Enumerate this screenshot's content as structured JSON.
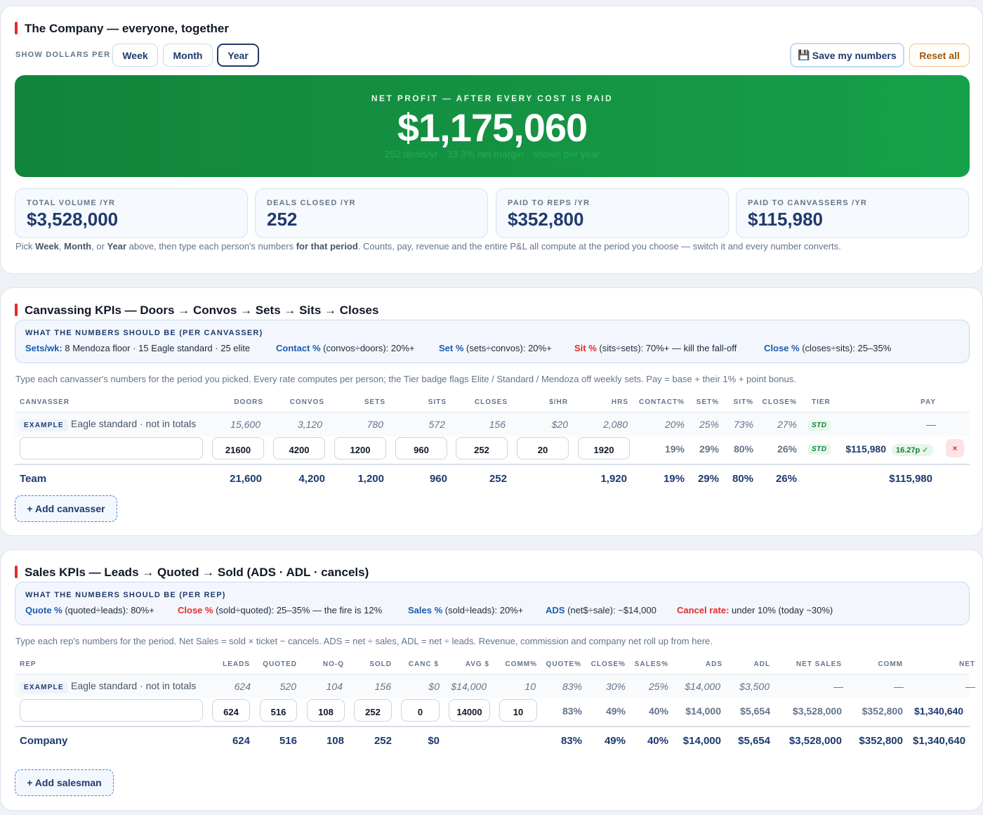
{
  "company": {
    "title": "The Company — everyone, together",
    "period_label": "SHOW DOLLARS PER",
    "periods": [
      "Week",
      "Month",
      "Year"
    ],
    "active_period": "Year",
    "save_label": "Save my numbers",
    "save_icon": "💾",
    "reset_label": "Reset all",
    "hero": {
      "label": "NET PROFIT — AFTER EVERY COST IS PAID",
      "value": "$1,175,060",
      "sub": "252 deals/yr · 33.3% net margin · shown per year"
    },
    "stats": [
      {
        "label": "TOTAL VOLUME /YR",
        "value": "$3,528,000"
      },
      {
        "label": "DEALS CLOSED /YR",
        "value": "252"
      },
      {
        "label": "PAID TO REPS /YR",
        "value": "$352,800"
      },
      {
        "label": "PAID TO CANVASSERS /YR",
        "value": "$115,980"
      }
    ],
    "note": {
      "p1": "Pick ",
      "week": "Week",
      "p2": ", ",
      "month": "Month",
      "p3": ", or ",
      "year": "Year",
      "p4": " above, then type each person's numbers ",
      "bold": "for that period",
      "p5": ". Counts, pay, revenue and the entire P&L all compute at the period you choose — switch it and every number converts."
    }
  },
  "canvassing": {
    "title": "Canvassing KPIs — Doors → Convos → Sets → Sits → Closes",
    "targets_title": "WHAT THE NUMBERS SHOULD BE (PER CANVASSER)",
    "targets": [
      {
        "key": "Sets/wk:",
        "text": " 8 Mendoza floor · 15 Eagle standard · 25 elite"
      },
      {
        "key": "Contact %",
        "text": " (convos÷doors): 20%+"
      },
      {
        "key": "Set %",
        "text": " (sets÷convos): 20%+"
      },
      {
        "key": "Sit %",
        "text": " (sits÷sets): 70%+ — kill the fall-off"
      },
      {
        "key": "Close %",
        "text": " (closes÷sits): 25–35%"
      }
    ],
    "note": "Type each canvasser's numbers for the period you picked. Every rate computes per person; the Tier badge flags Elite / Standard / Mendoza off weekly sets. Pay = base + their 1% + point bonus.",
    "headers": [
      "CANVASSER",
      "DOORS",
      "CONVOS",
      "SETS",
      "SITS",
      "CLOSES",
      "$/HR",
      "HRS",
      "CONTACT%",
      "SET%",
      "SIT%",
      "CLOSE%",
      "TIER",
      "PAY"
    ],
    "example": {
      "badge": "EXAMPLE",
      "label": "Eagle standard · not in totals",
      "values": [
        "15,600",
        "3,120",
        "780",
        "572",
        "156",
        "$20",
        "2,080",
        "20%",
        "25%",
        "73%",
        "27%"
      ],
      "tier": "STD",
      "pay": "—"
    },
    "row": {
      "name": "",
      "inputs": [
        "21600",
        "4200",
        "1200",
        "960",
        "252",
        "20",
        "1920"
      ],
      "rates": [
        "19%",
        "29%",
        "80%",
        "26%"
      ],
      "tier": "STD",
      "pay": "$115,980",
      "points": "16.27p ✓",
      "delete": "×"
    },
    "totals": {
      "label": "Team",
      "values": [
        "21,600",
        "4,200",
        "1,200",
        "960",
        "252"
      ],
      "hrs": "1,920",
      "rates": [
        "19%",
        "29%",
        "80%",
        "26%"
      ],
      "pay": "$115,980"
    },
    "add_label": "+ Add canvasser"
  },
  "sales": {
    "title": "Sales KPIs — Leads → Quoted → Sold (ADS · ADL · cancels)",
    "targets_title": "WHAT THE NUMBERS SHOULD BE (PER REP)",
    "targets": [
      {
        "key": "Quote %",
        "text": " (quoted÷leads): 80%+"
      },
      {
        "key": "Close %",
        "text": " (sold÷quoted): 25–35% — the fire is 12%"
      },
      {
        "key": "Sales %",
        "text": " (sold÷leads): 20%+"
      },
      {
        "key": "ADS",
        "text": " (net$÷sale): ~$14,000"
      },
      {
        "key": "Cancel rate:",
        "text": " under 10% (today ~30%)"
      }
    ],
    "note": "Type each rep's numbers for the period. Net Sales = sold × ticket − cancels. ADS = net ÷ sales, ADL = net ÷ leads. Revenue, commission and company net roll up from here.",
    "headers": [
      "REP",
      "LEADS",
      "QUOTED",
      "NO-Q",
      "SOLD",
      "CANC $",
      "AVG $",
      "COMM%",
      "QUOTE%",
      "CLOSE%",
      "SALES%",
      "ADS",
      "ADL",
      "NET SALES",
      "COMM",
      "NET"
    ],
    "example": {
      "badge": "EXAMPLE",
      "label": "Eagle standard · not in totals",
      "values": [
        "624",
        "520",
        "104",
        "156",
        "$0",
        "$14,000",
        "10",
        "83%",
        "30%",
        "25%",
        "$14,000",
        "$3,500",
        "—",
        "—",
        "—"
      ]
    },
    "row": {
      "name": "",
      "inputs": [
        "624",
        "516",
        "108",
        "252",
        "0",
        "14000",
        "10"
      ],
      "calc": [
        "83%",
        "49%",
        "40%",
        "$14,000",
        "$5,654",
        "$3,528,000",
        "$352,800",
        "$1,340,640"
      ]
    },
    "totals": {
      "label": "Company",
      "values": [
        "624",
        "516",
        "108",
        "252",
        "$0"
      ],
      "calc": [
        "83%",
        "49%",
        "40%",
        "$14,000",
        "$5,654",
        "$3,528,000",
        "$352,800",
        "$1,340,640"
      ]
    },
    "add_label": "+ Add salesman"
  }
}
